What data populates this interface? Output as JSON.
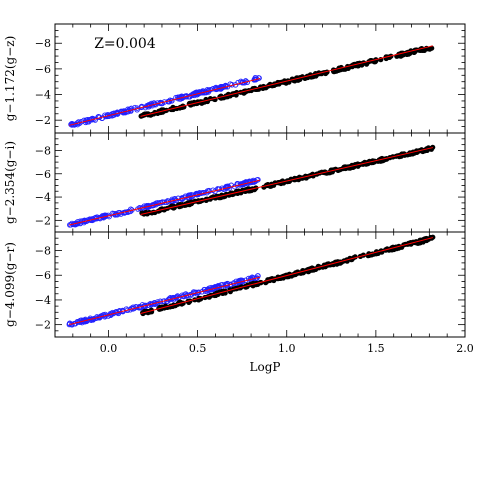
{
  "chart_data": [
    {
      "type": "scatter",
      "annotation": "Z=0.004",
      "ylabel": "g−1.172(g−z)",
      "xlabel": "",
      "xlim": [
        -0.3,
        2.0
      ],
      "ylim": [
        -1.0,
        -9.5
      ],
      "y_inverted": true,
      "x_ticks": [
        0.0,
        0.5,
        1.0,
        1.5,
        2.0
      ],
      "x_ticklabels_shown": false,
      "y_ticks": [
        -2,
        -4,
        -6,
        -8
      ],
      "y_ticklabels": [
        "−2",
        "−4",
        "−6",
        "−8"
      ],
      "grid": false,
      "series": [
        {
          "color": "#2222ff",
          "marker": "open-circle",
          "x_range": [
            -0.22,
            0.85
          ],
          "y_at_x": [
            [
              -0.22,
              -1.6
            ],
            [
              0.85,
              -5.3
            ]
          ]
        },
        {
          "color": "#000000",
          "marker": "filled-circle",
          "x_range": [
            0.18,
            1.82
          ],
          "y_at_x": [
            [
              0.18,
              -2.3
            ],
            [
              1.82,
              -7.7
            ]
          ]
        }
      ],
      "fit_lines": [
        {
          "color": "#ff0000",
          "x_range": [
            -0.22,
            0.85
          ],
          "y_at_x": [
            [
              -0.22,
              -1.6
            ],
            [
              0.85,
              -5.25
            ]
          ]
        },
        {
          "color": "#ff0000",
          "x_range": [
            0.18,
            1.82
          ],
          "y_at_x": [
            [
              0.18,
              -2.3
            ],
            [
              1.82,
              -7.8
            ]
          ]
        }
      ]
    },
    {
      "type": "scatter",
      "ylabel": "g−2.354(g−i)",
      "xlabel": "",
      "xlim": [
        -0.3,
        2.0
      ],
      "ylim": [
        -1.0,
        -9.5
      ],
      "y_inverted": true,
      "x_ticks": [
        0.0,
        0.5,
        1.0,
        1.5,
        2.0
      ],
      "x_ticklabels_shown": false,
      "y_ticks": [
        -2,
        -4,
        -6,
        -8
      ],
      "y_ticklabels": [
        "−2",
        "−4",
        "−6",
        "−8"
      ],
      "grid": false,
      "series": [
        {
          "color": "#2222ff",
          "marker": "open-circle",
          "x_range": [
            -0.22,
            0.85
          ],
          "y_at_x": [
            [
              -0.22,
              -1.6
            ],
            [
              0.85,
              -5.5
            ]
          ]
        },
        {
          "color": "#000000",
          "marker": "filled-circle",
          "x_range": [
            0.18,
            1.82
          ],
          "y_at_x": [
            [
              0.18,
              -2.5
            ],
            [
              1.82,
              -8.2
            ]
          ]
        }
      ],
      "fit_lines": [
        {
          "color": "#ff0000",
          "x_range": [
            -0.22,
            0.85
          ],
          "y_at_x": [
            [
              -0.22,
              -1.6
            ],
            [
              0.85,
              -5.45
            ]
          ]
        },
        {
          "color": "#ff0000",
          "x_range": [
            0.18,
            1.82
          ],
          "y_at_x": [
            [
              0.18,
              -2.5
            ],
            [
              1.82,
              -8.25
            ]
          ]
        }
      ]
    },
    {
      "type": "scatter",
      "ylabel": "g−4.099(g−r)",
      "xlabel": "LogP",
      "xlim": [
        -0.3,
        2.0
      ],
      "ylim": [
        -1.0,
        -9.5
      ],
      "y_inverted": true,
      "x_ticks": [
        0.0,
        0.5,
        1.0,
        1.5,
        2.0
      ],
      "x_ticklabels": [
        "0.0",
        "0.5",
        "1.0",
        "1.5",
        "2.0"
      ],
      "x_ticklabels_shown": true,
      "y_ticks": [
        -2,
        -4,
        -6,
        -8
      ],
      "y_ticklabels": [
        "−2",
        "−4",
        "−6",
        "−8"
      ],
      "grid": false,
      "series": [
        {
          "color": "#2222ff",
          "marker": "open-circle",
          "x_range": [
            -0.22,
            0.85
          ],
          "y_at_x": [
            [
              -0.22,
              -2.0
            ],
            [
              0.85,
              -5.9
            ]
          ]
        },
        {
          "color": "#000000",
          "marker": "filled-circle",
          "x_range": [
            0.18,
            1.82
          ],
          "y_at_x": [
            [
              0.18,
              -2.9
            ],
            [
              1.82,
              -9.0
            ]
          ]
        }
      ],
      "fit_lines": [
        {
          "color": "#ff0000",
          "x_range": [
            -0.22,
            0.85
          ],
          "y_at_x": [
            [
              -0.22,
              -2.0
            ],
            [
              0.85,
              -5.85
            ]
          ]
        },
        {
          "color": "#ff0000",
          "x_range": [
            0.18,
            1.82
          ],
          "y_at_x": [
            [
              0.18,
              -2.9
            ],
            [
              1.82,
              -9.05
            ]
          ]
        }
      ]
    }
  ]
}
